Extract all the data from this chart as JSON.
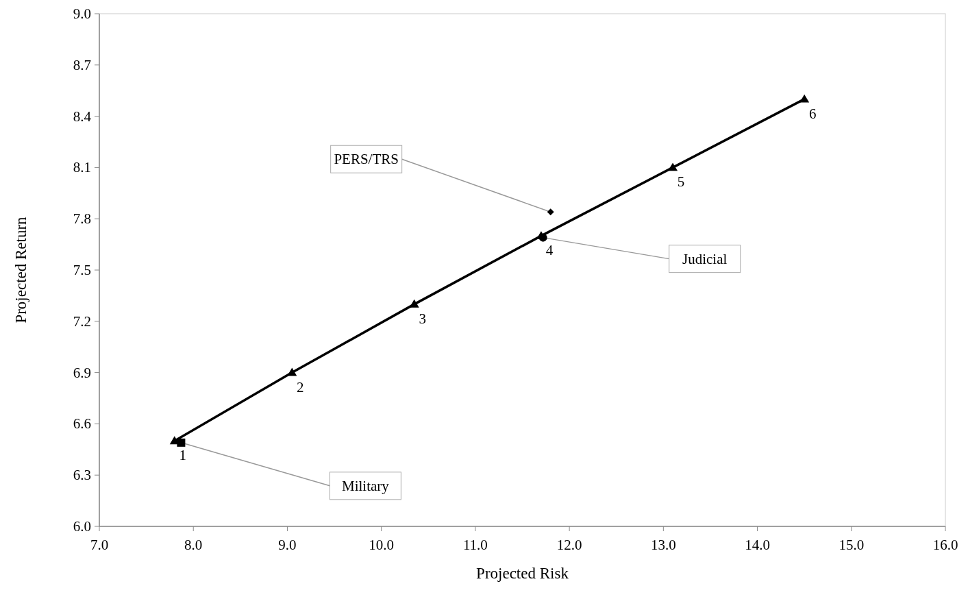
{
  "chart_data": {
    "type": "line",
    "xlabel": "Projected Risk",
    "ylabel": "Projected Return",
    "xlim": [
      7.0,
      16.0
    ],
    "xticks": [
      {
        "value": 7,
        "label": "7.0"
      },
      {
        "value": 8,
        "label": "8.0"
      },
      {
        "value": 9,
        "label": "9.0"
      },
      {
        "value": 10,
        "label": "10.0"
      },
      {
        "value": 11,
        "label": "11.0"
      },
      {
        "value": 12,
        "label": "12.0"
      },
      {
        "value": 13,
        "label": "13.0"
      },
      {
        "value": 14,
        "label": "14.0"
      },
      {
        "value": 15,
        "label": "15.0"
      },
      {
        "value": 16,
        "label": "16.0"
      }
    ],
    "ylim": [
      6.0,
      9.0
    ],
    "yticks": [
      {
        "value": 6,
        "label": "6.0"
      },
      6.3,
      6.6,
      6.9,
      7.2,
      7.5,
      7.8,
      8.1,
      8.4,
      8.7,
      {
        "value": 9,
        "label": "9.0"
      }
    ],
    "grid": false,
    "series": [
      {
        "color": "#000000",
        "marker": "triangle",
        "x": [
          7.8,
          9.05,
          10.35,
          11.7,
          13.1,
          14.5
        ],
        "values": [
          6.5,
          6.9,
          7.3,
          7.7,
          8.1,
          8.5
        ]
      },
      {
        "type": "scatter",
        "name": "PERS/TRS",
        "color": "#000000",
        "marker": "diamond",
        "x": [
          11.8
        ],
        "values": [
          7.84
        ]
      },
      {
        "type": "scatter",
        "name": "Judicial",
        "color": "#000000",
        "marker": "circle",
        "x": [
          11.72
        ],
        "values": [
          7.69
        ]
      },
      {
        "type": "scatter",
        "name": "Military",
        "color": "#000000",
        "marker": "square",
        "x": [
          7.87
        ],
        "values": [
          6.49
        ]
      }
    ],
    "annotations": [
      {
        "text": "1",
        "x": 7.8,
        "y": 6.5
      },
      {
        "text": "2",
        "x": 9.05,
        "y": 6.9
      },
      {
        "text": "3",
        "x": 10.35,
        "y": 7.3
      },
      {
        "text": "4",
        "x": 11.7,
        "y": 7.7
      },
      {
        "text": "5",
        "x": 13.1,
        "y": 8.1
      },
      {
        "text": "6",
        "x": 14.5,
        "y": 8.5
      }
    ]
  }
}
